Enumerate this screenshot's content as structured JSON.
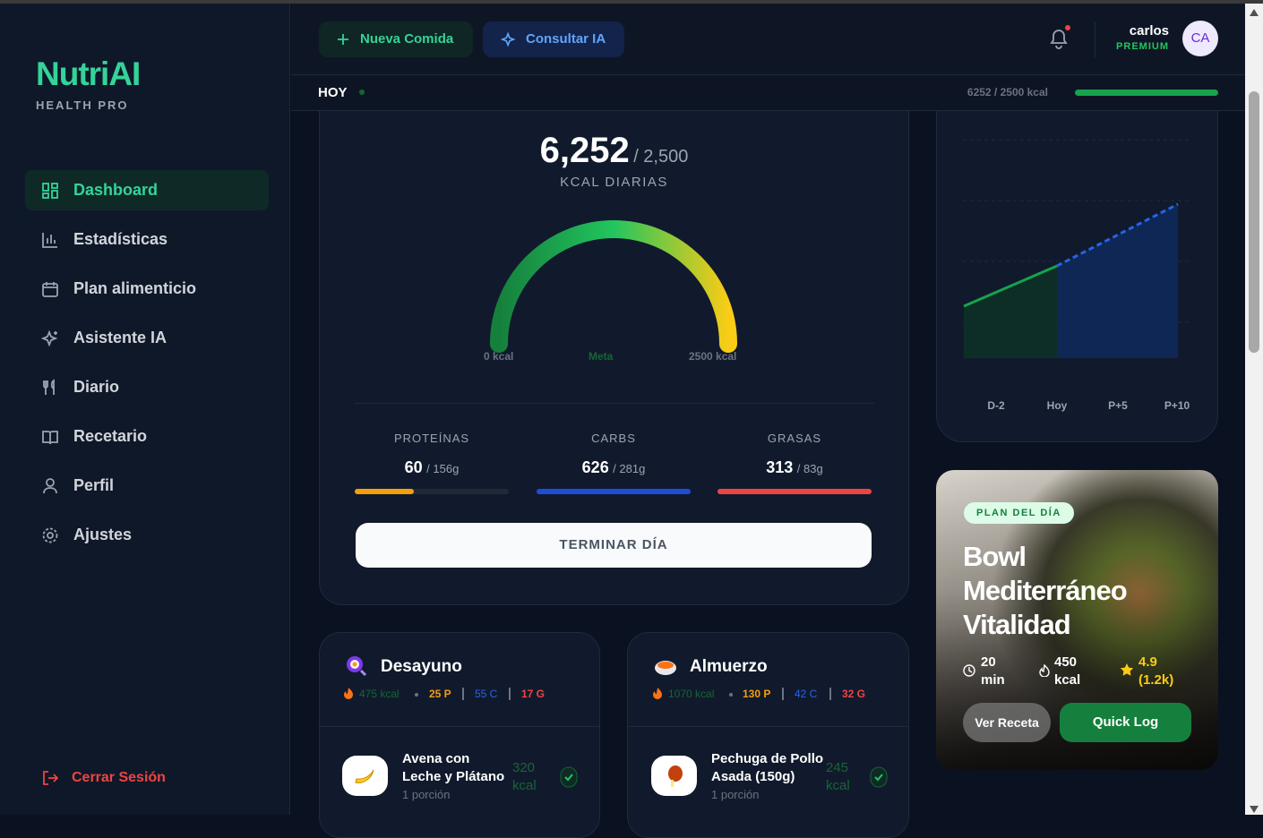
{
  "sidebar": {
    "brand": "NutriAI",
    "subtitle": "HEALTH PRO",
    "nav": [
      "Dashboard",
      "Estadísticas",
      "Plan alimenticio",
      "Asistente IA",
      "Diario",
      "Recetario",
      "Perfil",
      "Ajustes"
    ],
    "logout": "Cerrar Sesión"
  },
  "topbar": {
    "buttons": [
      "Nueva Comida",
      "Consultar IA"
    ],
    "user": {
      "name": "carlos",
      "plan": "PREMIUM",
      "initials": "CA"
    }
  },
  "subbar": {
    "label": "HOY",
    "summary": "6252 / 2500 kcal"
  },
  "calories": {
    "value": "6,252",
    "goal": "/ 2,500",
    "label": "KCAL DIARIAS",
    "gauge_labels": [
      "0 kcal",
      "Meta",
      "2500 kcal"
    ],
    "macros": [
      {
        "name": "PROTEÍNAS",
        "value": "60",
        "goal": "/ 156g"
      },
      {
        "name": "CARBS",
        "value": "626",
        "goal": "/ 281g"
      },
      {
        "name": "GRASAS",
        "value": "313",
        "goal": "/ 83g"
      }
    ],
    "button": "TERMINAR DÍA"
  },
  "trend": {
    "labels": [
      "D-2",
      "Hoy",
      "P+5",
      "P+10"
    ]
  },
  "plan": {
    "tag": "PLAN DEL DÍA",
    "title": "Bowl Mediterráneo Vitalidad",
    "time": "20 min",
    "kcal": "450 kcal",
    "rating": "4.9 (1.2k)",
    "buttons": [
      "Ver Receta",
      "Quick Log"
    ]
  },
  "meals": [
    {
      "name": "Desayuno",
      "kcal": "475 kcal",
      "p": "25 P",
      "c": "55 C",
      "g": "17 G",
      "item": {
        "name": "Avena con Leche y Plátano",
        "kcal": "320 kcal",
        "portion": "1 porción"
      }
    },
    {
      "name": "Almuerzo",
      "kcal": "1070 kcal",
      "p": "130 P",
      "c": "42 C",
      "g": "32 G",
      "item": {
        "name": "Pechuga de Pollo Asada (150g)",
        "kcal": "245 kcal",
        "portion": "1 porción"
      }
    }
  ]
}
